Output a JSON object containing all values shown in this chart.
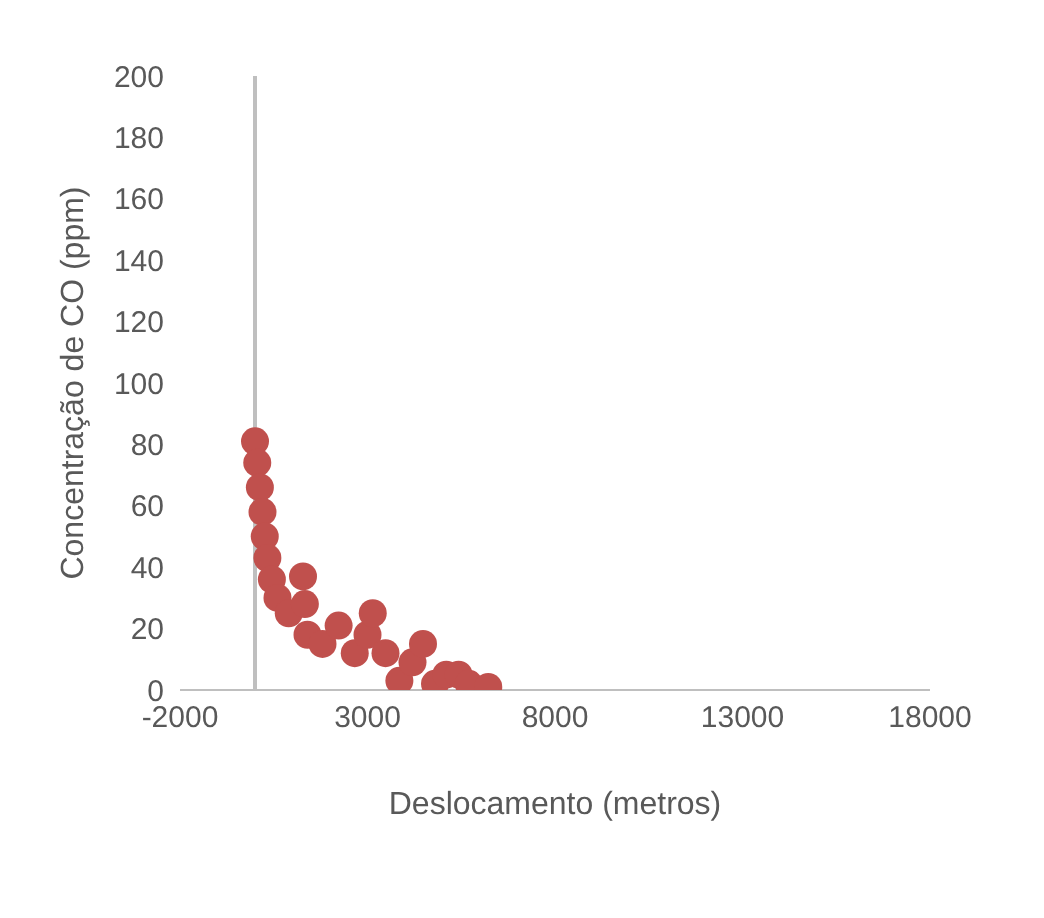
{
  "chart_data": {
    "type": "scatter",
    "xlabel": "Deslocamento (metros)",
    "ylabel": "Concentração de CO (ppm)",
    "xlim": [
      -2000,
      18000
    ],
    "xticks": [
      -2000,
      3000,
      8000,
      13000,
      18000
    ],
    "ylim": [
      0,
      200
    ],
    "yticks": [
      0,
      20,
      40,
      60,
      80,
      100,
      120,
      140,
      160,
      180,
      200
    ],
    "grid": false,
    "legend": false,
    "marker": "circle",
    "ref_lines": [
      {
        "axis": "x",
        "value": 0,
        "color": "#bfbfbf"
      }
    ],
    "series": [
      {
        "color": "#c0504d",
        "x": [
          0,
          60,
          130,
          200,
          260,
          330,
          450,
          600,
          900,
          1280,
          1330,
          1400,
          1800,
          2230,
          2660,
          3000,
          3140,
          3480,
          3850,
          4200,
          4480,
          4800,
          5100,
          5430,
          5700,
          6220
        ],
        "values": [
          81,
          74,
          66,
          58,
          50,
          43,
          36,
          30,
          25,
          37,
          28,
          18,
          15,
          21,
          12,
          18,
          25,
          12,
          3,
          9,
          15,
          2,
          5,
          5,
          2,
          1
        ]
      }
    ]
  }
}
